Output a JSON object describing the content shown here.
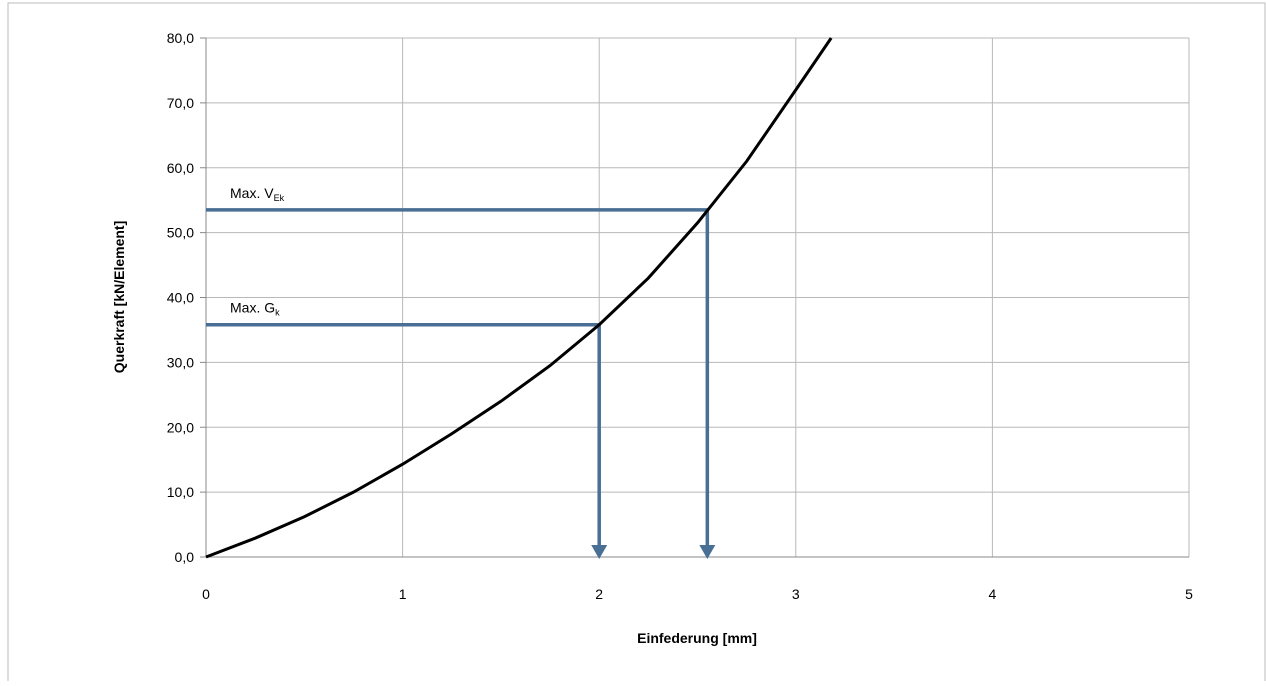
{
  "chart_data": {
    "type": "line",
    "xlabel": "Einfederung [mm]",
    "ylabel": "Querkraft [kN/Element]",
    "x": [
      0,
      0.25,
      0.5,
      0.75,
      1,
      1.25,
      1.5,
      1.75,
      2,
      2.25,
      2.5,
      2.75,
      3,
      3.18
    ],
    "series": [
      {
        "color": "#000000",
        "values": [
          0,
          2.9,
          6.2,
          10,
          14.3,
          19,
          24,
          29.5,
          35.8,
          43,
          51.5,
          61,
          72,
          80
        ]
      }
    ],
    "xlim": [
      0,
      5
    ],
    "ylim": [
      0,
      80
    ],
    "xticks": [
      0,
      1,
      2,
      3,
      4,
      5
    ],
    "yticks": [
      {
        "value": 0,
        "label": "0,0"
      },
      {
        "value": 10,
        "label": "10,0"
      },
      {
        "value": 20,
        "label": "20,0"
      },
      {
        "value": 30,
        "label": "30,0"
      },
      {
        "value": 40,
        "label": "40,0"
      },
      {
        "value": 50,
        "label": "50,0"
      },
      {
        "value": 60,
        "label": "60,0"
      },
      {
        "value": 70,
        "label": "70,0"
      },
      {
        "value": 80,
        "label": "80,0"
      }
    ],
    "grid": true,
    "annotations": [
      {
        "text": "Max. V",
        "sub": "Ek",
        "x": 2.55,
        "y": 53.5,
        "color": "#4a6f94"
      },
      {
        "text": "Max. G",
        "sub": "k",
        "x": 2.0,
        "y": 35.8,
        "color": "#4a6f94"
      }
    ]
  }
}
